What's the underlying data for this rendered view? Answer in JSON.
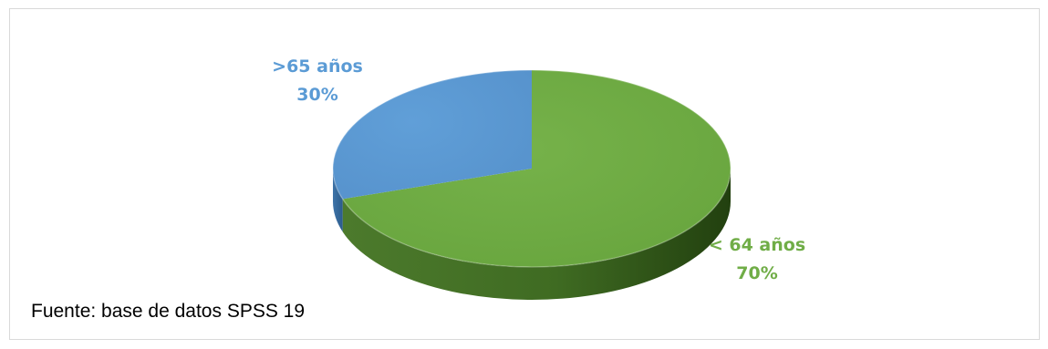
{
  "chart_data": {
    "type": "pie",
    "style": "3d",
    "title": "",
    "slices": [
      {
        "label": "< 64 años",
        "value": 70,
        "percent_label": "70%",
        "color": "#70ad47"
      },
      {
        "label": ">65 años",
        "value": 30,
        "percent_label": "30%",
        "color": "#5b9bd5"
      }
    ],
    "legend": "none"
  },
  "source_note": "Fuente: base de datos SPSS 19"
}
